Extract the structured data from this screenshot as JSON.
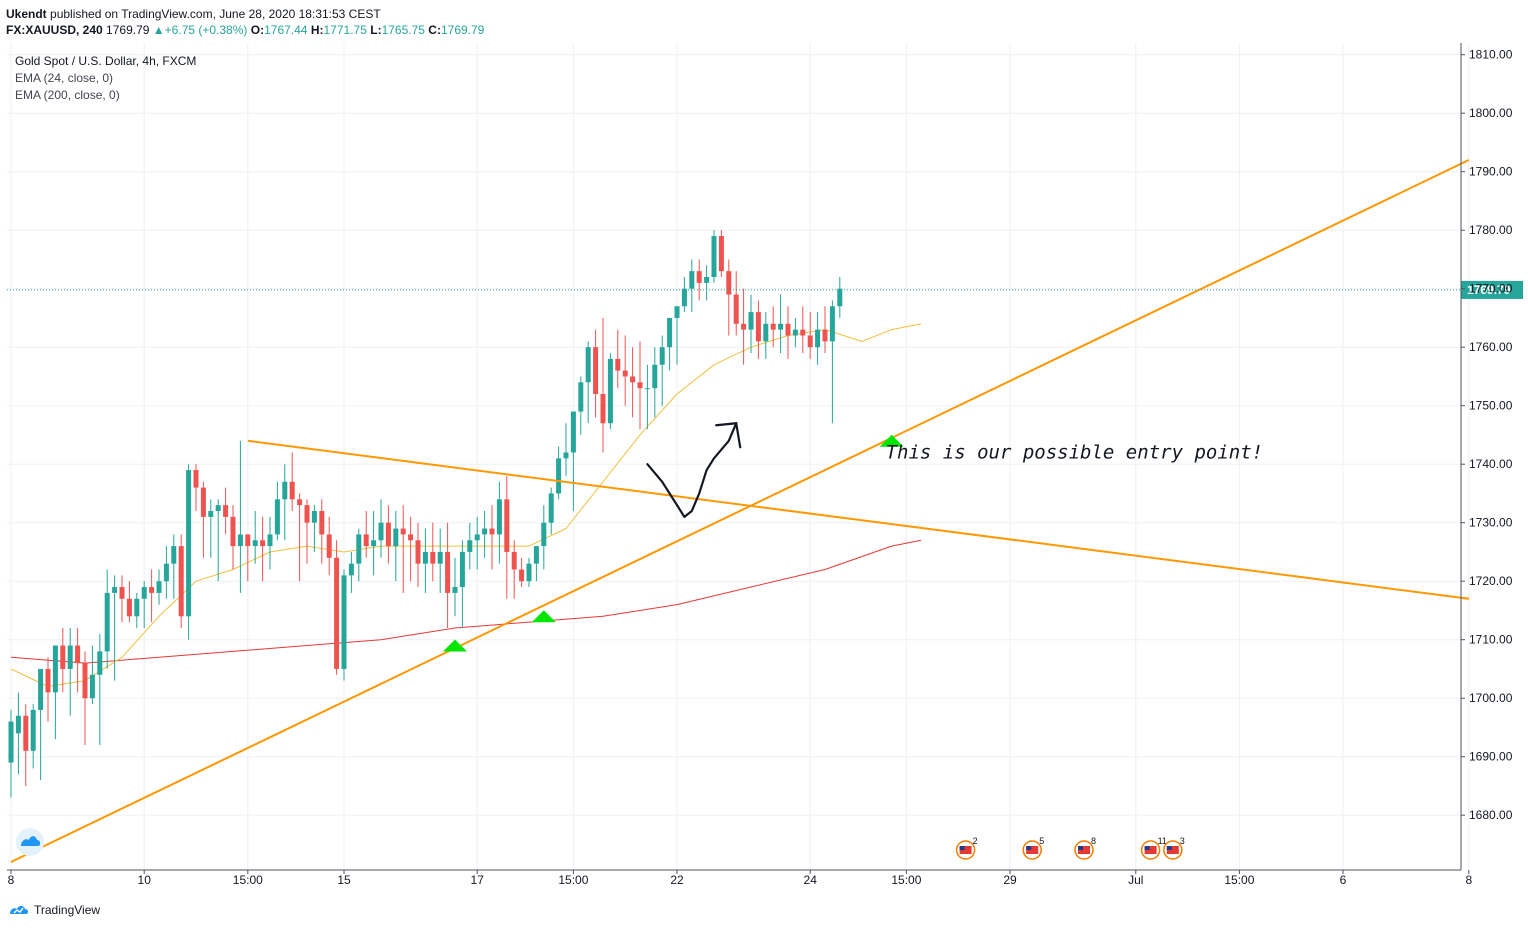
{
  "header": {
    "author": "Ukendt",
    "published": "published on TradingView.com, June 28, 2020 18:31:53 CEST"
  },
  "symbol_line": {
    "symbol": "FX:XAUUSD, 240",
    "last": "1769.79",
    "change": "+6.75 (+0.38%)",
    "o_label": "O:",
    "o": "1767.44",
    "h_label": "H:",
    "h": "1771.75",
    "l_label": "L:",
    "l": "1765.75",
    "c_label": "C:",
    "c": "1769.79"
  },
  "legend": {
    "title": "Gold Spot / U.S. Dollar, 4h, FXCM",
    "ema1": "EMA (24, close, 0)",
    "ema2": "EMA (200, close, 0)"
  },
  "footer": {
    "brand": "TradingView"
  },
  "colors": {
    "up": "#26a69a",
    "down": "#ef5350",
    "ema24": "#f0c040",
    "ema200": "#e53935",
    "trendline": "#ff9800",
    "arrow_marker": "#00e600",
    "last_price_bg": "#26a69a",
    "grid": "#eef0f3"
  },
  "chart_data": {
    "type": "candlestick",
    "title": "Gold Spot / U.S. Dollar, 4h, FXCM",
    "ylim": [
      1672,
      1812
    ],
    "yticks": [
      1680,
      1690,
      1700,
      1710,
      1720,
      1730,
      1740,
      1750,
      1760,
      1770,
      1780,
      1790,
      1800,
      1810
    ],
    "ytick_labels": [
      "1680.00",
      "1690.00",
      "1700.00",
      "1710.00",
      "1720.00",
      "1730.00",
      "1740.00",
      "1750.00",
      "1760.00",
      "1770.00",
      "1780.00",
      "1790.00",
      "1800.00",
      "1810.00"
    ],
    "xticks": [
      {
        "i": 0,
        "label": "8"
      },
      {
        "i": 18,
        "label": "10"
      },
      {
        "i": 32,
        "label": "15:00"
      },
      {
        "i": 45,
        "label": "15"
      },
      {
        "i": 63,
        "label": "17"
      },
      {
        "i": 76,
        "label": "15:00"
      },
      {
        "i": 90,
        "label": "22"
      },
      {
        "i": 108,
        "label": "24"
      },
      {
        "i": 121,
        "label": "15:00"
      },
      {
        "i": 135,
        "label": "29"
      },
      {
        "i": 152,
        "label": "Jul"
      },
      {
        "i": 166,
        "label": "15:00"
      },
      {
        "i": 180,
        "label": "6"
      },
      {
        "i": 197,
        "label": "8"
      }
    ],
    "last_price": 1769.79,
    "last_price_label": "1769.79",
    "candles": [
      [
        1689,
        1698,
        1683,
        1696
      ],
      [
        1694,
        1701,
        1687,
        1697
      ],
      [
        1697,
        1699,
        1685,
        1691
      ],
      [
        1691,
        1699,
        1688,
        1698
      ],
      [
        1698,
        1705,
        1686,
        1705
      ],
      [
        1705,
        1707,
        1696,
        1701
      ],
      [
        1701,
        1709,
        1693,
        1709
      ],
      [
        1709,
        1712,
        1701,
        1705
      ],
      [
        1705,
        1712,
        1697,
        1709
      ],
      [
        1709,
        1712,
        1701,
        1706
      ],
      [
        1706,
        1708,
        1692,
        1700
      ],
      [
        1700,
        1709,
        1699,
        1704
      ],
      [
        1704,
        1711,
        1692,
        1708
      ],
      [
        1708,
        1722,
        1705,
        1718
      ],
      [
        1718,
        1721,
        1703,
        1719
      ],
      [
        1719,
        1721,
        1713,
        1717
      ],
      [
        1717,
        1720,
        1713,
        1714
      ],
      [
        1714,
        1718,
        1712,
        1717
      ],
      [
        1717,
        1720,
        1712,
        1719
      ],
      [
        1719,
        1722,
        1713,
        1718
      ],
      [
        1718,
        1722,
        1716,
        1720
      ],
      [
        1720,
        1726,
        1717,
        1723
      ],
      [
        1723,
        1728,
        1717,
        1726
      ],
      [
        1726,
        1728,
        1712,
        1714
      ],
      [
        1714,
        1740,
        1710,
        1739
      ],
      [
        1739,
        1740,
        1732,
        1736
      ],
      [
        1736,
        1737,
        1724,
        1731
      ],
      [
        1731,
        1734,
        1724,
        1732
      ],
      [
        1732,
        1734,
        1720,
        1733
      ],
      [
        1733,
        1736,
        1728,
        1731
      ],
      [
        1731,
        1733,
        1722,
        1726
      ],
      [
        1726,
        1744,
        1718,
        1728
      ],
      [
        1728,
        1728,
        1720,
        1726
      ],
      [
        1726,
        1732,
        1723,
        1727
      ],
      [
        1727,
        1731,
        1720,
        1726
      ],
      [
        1726,
        1731,
        1722,
        1728
      ],
      [
        1728,
        1737,
        1727,
        1734
      ],
      [
        1734,
        1740,
        1727,
        1737
      ],
      [
        1737,
        1742,
        1732,
        1734
      ],
      [
        1734,
        1735,
        1720,
        1733
      ],
      [
        1733,
        1734,
        1723,
        1730
      ],
      [
        1730,
        1733,
        1725,
        1732
      ],
      [
        1732,
        1734,
        1723,
        1728
      ],
      [
        1728,
        1731,
        1721,
        1724
      ],
      [
        1724,
        1727,
        1704,
        1705
      ],
      [
        1705,
        1722,
        1703,
        1721
      ],
      [
        1721,
        1725,
        1718,
        1723
      ],
      [
        1723,
        1729,
        1720,
        1728
      ],
      [
        1728,
        1732,
        1724,
        1726
      ],
      [
        1726,
        1732,
        1721,
        1727
      ],
      [
        1727,
        1734,
        1724,
        1730
      ],
      [
        1730,
        1733,
        1723,
        1726
      ],
      [
        1726,
        1732,
        1720,
        1729
      ],
      [
        1729,
        1733,
        1718,
        1728
      ],
      [
        1728,
        1731,
        1720,
        1727
      ],
      [
        1727,
        1730,
        1719,
        1723
      ],
      [
        1723,
        1729,
        1718,
        1725
      ],
      [
        1725,
        1730,
        1720,
        1723
      ],
      [
        1723,
        1729,
        1718,
        1725
      ],
      [
        1725,
        1730,
        1712,
        1718
      ],
      [
        1718,
        1724,
        1714,
        1719
      ],
      [
        1719,
        1727,
        1712,
        1725
      ],
      [
        1725,
        1730,
        1722,
        1727
      ],
      [
        1727,
        1731,
        1722,
        1728
      ],
      [
        1728,
        1732,
        1724,
        1729
      ],
      [
        1729,
        1733,
        1722,
        1728
      ],
      [
        1728,
        1737,
        1723,
        1734
      ],
      [
        1734,
        1738,
        1717,
        1725
      ],
      [
        1725,
        1727,
        1717,
        1722
      ],
      [
        1722,
        1724,
        1719,
        1720
      ],
      [
        1720,
        1724,
        1719,
        1723
      ],
      [
        1723,
        1726,
        1720,
        1726
      ],
      [
        1726,
        1733,
        1722,
        1730
      ],
      [
        1730,
        1736,
        1728,
        1735
      ],
      [
        1735,
        1743,
        1734,
        1741
      ],
      [
        1741,
        1747,
        1738,
        1742
      ],
      [
        1742,
        1749,
        1732,
        1749
      ],
      [
        1749,
        1755,
        1745,
        1754
      ],
      [
        1754,
        1761,
        1747,
        1760
      ],
      [
        1760,
        1763,
        1748,
        1752
      ],
      [
        1752,
        1765,
        1742,
        1747
      ],
      [
        1747,
        1759,
        1746,
        1758
      ],
      [
        1758,
        1763,
        1753,
        1756
      ],
      [
        1756,
        1762,
        1750,
        1755
      ],
      [
        1755,
        1760,
        1748,
        1754
      ],
      [
        1754,
        1761,
        1746,
        1753
      ],
      [
        1753,
        1757,
        1746,
        1753
      ],
      [
        1753,
        1760,
        1748,
        1757
      ],
      [
        1757,
        1762,
        1750,
        1760
      ],
      [
        1760,
        1765,
        1756,
        1765
      ],
      [
        1765,
        1767,
        1757,
        1767
      ],
      [
        1767,
        1772,
        1766,
        1770
      ],
      [
        1770,
        1775,
        1766,
        1773
      ],
      [
        1773,
        1775,
        1768,
        1771
      ],
      [
        1771,
        1774,
        1768,
        1772
      ],
      [
        1772,
        1780,
        1771,
        1779
      ],
      [
        1779,
        1780,
        1772,
        1773
      ],
      [
        1773,
        1775,
        1762,
        1769
      ],
      [
        1769,
        1773,
        1762,
        1764
      ],
      [
        1764,
        1770,
        1757,
        1763
      ],
      [
        1763,
        1769,
        1759,
        1766
      ],
      [
        1766,
        1768,
        1758,
        1761
      ],
      [
        1761,
        1766,
        1758,
        1764
      ],
      [
        1764,
        1767,
        1760,
        1763
      ],
      [
        1763,
        1769,
        1759,
        1764
      ],
      [
        1764,
        1767,
        1758,
        1762
      ],
      [
        1762,
        1765,
        1760,
        1763
      ],
      [
        1763,
        1767,
        1759,
        1762
      ],
      [
        1762,
        1766,
        1758,
        1760
      ],
      [
        1760,
        1766,
        1757,
        1763
      ],
      [
        1763,
        1767,
        1759,
        1761
      ],
      [
        1761,
        1768,
        1747,
        1767
      ],
      [
        1767,
        1772,
        1765,
        1770
      ]
    ],
    "ema24": [
      [
        0,
        1705
      ],
      [
        5,
        1702
      ],
      [
        10,
        1703
      ],
      [
        15,
        1707
      ],
      [
        20,
        1714
      ],
      [
        25,
        1720
      ],
      [
        30,
        1722
      ],
      [
        35,
        1725
      ],
      [
        40,
        1726
      ],
      [
        45,
        1725
      ],
      [
        50,
        1726
      ],
      [
        55,
        1726
      ],
      [
        60,
        1726
      ],
      [
        65,
        1726
      ],
      [
        70,
        1726
      ],
      [
        75,
        1729
      ],
      [
        80,
        1737
      ],
      [
        85,
        1745
      ],
      [
        90,
        1752
      ],
      [
        95,
        1757
      ],
      [
        100,
        1760
      ],
      [
        105,
        1762
      ],
      [
        110,
        1763
      ],
      [
        115,
        1761
      ],
      [
        119,
        1763
      ],
      [
        123,
        1764
      ]
    ],
    "ema200": [
      [
        0,
        1707
      ],
      [
        10,
        1706
      ],
      [
        20,
        1707
      ],
      [
        30,
        1708
      ],
      [
        40,
        1709
      ],
      [
        50,
        1710
      ],
      [
        60,
        1712
      ],
      [
        70,
        1713
      ],
      [
        80,
        1714
      ],
      [
        90,
        1716
      ],
      [
        100,
        1719
      ],
      [
        110,
        1722
      ],
      [
        119,
        1726
      ],
      [
        123,
        1727
      ]
    ],
    "trendlines": [
      {
        "name": "ascending support",
        "x1": 0,
        "y1": 1672,
        "x2": 197,
        "y2": 1792
      },
      {
        "name": "descending resistance",
        "x1": 32,
        "y1": 1744,
        "x2": 197,
        "y2": 1717
      }
    ],
    "markers": [
      {
        "i": 60,
        "price": 1709
      },
      {
        "i": 72,
        "price": 1714
      },
      {
        "i": 119,
        "price": 1744
      }
    ],
    "drawn_arrow": [
      [
        86,
        1740
      ],
      [
        88,
        1737
      ],
      [
        90,
        1733
      ],
      [
        91,
        1731
      ],
      [
        92,
        1732
      ],
      [
        93,
        1735
      ],
      [
        94,
        1739
      ],
      [
        95,
        1741
      ],
      [
        97,
        1744
      ],
      [
        98,
        1747
      ]
    ],
    "annotation": {
      "i": 119,
      "price": 1742,
      "text": "This is our possible entry point!"
    },
    "events": [
      {
        "i": 129,
        "label": "2"
      },
      {
        "i": 138,
        "label": "5"
      },
      {
        "i": 145,
        "label": "8"
      },
      {
        "i": 154,
        "label": "11"
      },
      {
        "i": 157,
        "label": "3"
      }
    ]
  }
}
